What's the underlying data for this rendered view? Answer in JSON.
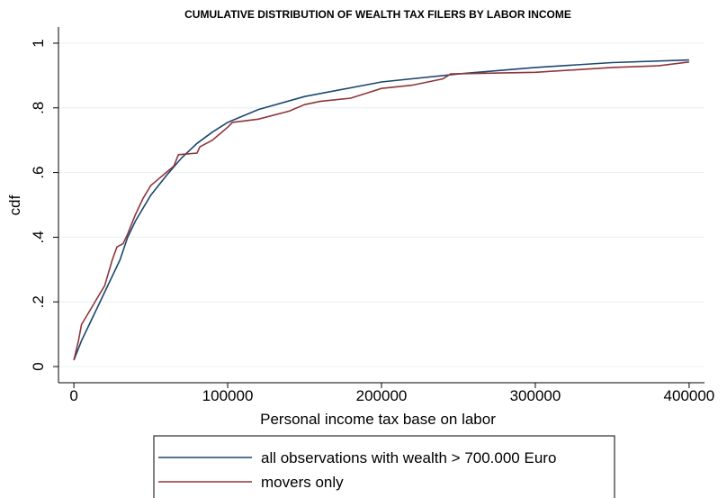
{
  "chart_data": {
    "type": "line",
    "title": "CUMULATIVE DISTRIBUTION OF WEALTH TAX FILERS BY LABOR INCOME",
    "x_label": "Personal income tax base on labor",
    "y_label": "cdf",
    "xlim": [
      -10000,
      410000
    ],
    "xticks": [
      0,
      100000,
      200000,
      300000,
      400000
    ],
    "ylim": [
      -0.05,
      1.05
    ],
    "yticks": [
      0,
      {
        "value": 0.2,
        "label": ".2"
      },
      {
        "value": 0.4,
        "label": ".4"
      },
      {
        "value": 0.6,
        "label": ".6"
      },
      {
        "value": 0.8,
        "label": ".8"
      },
      1
    ],
    "grid": true,
    "legend": "bottom",
    "series": [
      {
        "name": "all observations with wealth > 700.000 Euro",
        "color": "#1a476f",
        "x": [
          0,
          5000,
          10000,
          20000,
          30000,
          35000,
          40000,
          50000,
          60000,
          70000,
          80000,
          90000,
          100000,
          120000,
          150000,
          200000,
          250000,
          300000,
          350000,
          400000
        ],
        "values": [
          0.02,
          0.08,
          0.13,
          0.23,
          0.33,
          0.4,
          0.45,
          0.53,
          0.59,
          0.645,
          0.69,
          0.725,
          0.755,
          0.795,
          0.835,
          0.88,
          0.905,
          0.925,
          0.94,
          0.948
        ]
      },
      {
        "name": "movers only",
        "color": "#90353b",
        "x": [
          0,
          3000,
          5000,
          10000,
          15000,
          20000,
          25000,
          28000,
          32000,
          35000,
          40000,
          45000,
          50000,
          55000,
          60000,
          65000,
          68000,
          80000,
          82000,
          90000,
          95000,
          100000,
          103000,
          120000,
          140000,
          150000,
          160000,
          180000,
          190000,
          200000,
          220000,
          240000,
          245000,
          300000,
          350000,
          380000,
          400000
        ],
        "values": [
          0.02,
          0.08,
          0.13,
          0.17,
          0.21,
          0.25,
          0.33,
          0.37,
          0.38,
          0.41,
          0.47,
          0.52,
          0.56,
          0.58,
          0.6,
          0.62,
          0.655,
          0.66,
          0.68,
          0.7,
          0.72,
          0.74,
          0.755,
          0.765,
          0.79,
          0.81,
          0.82,
          0.83,
          0.845,
          0.86,
          0.87,
          0.89,
          0.905,
          0.91,
          0.925,
          0.93,
          0.942
        ]
      }
    ]
  }
}
